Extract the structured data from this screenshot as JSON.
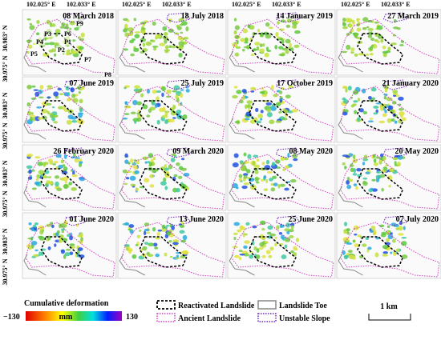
{
  "x_labels": [
    "102.025° E",
    "102.033° E"
  ],
  "y_labels": [
    "30.983° N",
    "30.975° N"
  ],
  "panels": [
    "08 March 2018",
    "18 July 2018",
    "14 January 2019",
    "27 March 2019",
    "07 June 2019",
    "25 July 2019",
    "17 October 2019",
    "21 January 2020",
    "26 February 2020",
    "09 March 2020",
    "08 May 2020",
    "20 May 2020",
    "01 June 2020",
    "13 June 2020",
    "25 June 2020",
    "07 July 2020"
  ],
  "point_labels": [
    "P1",
    "P2",
    "P3",
    "P4",
    "P5",
    "P6",
    "P7",
    "P8",
    "P9"
  ],
  "colorbar": {
    "title": "Cumulative deformation",
    "min_label": "−130",
    "unit": "mm",
    "max_label": "130"
  },
  "legend": [
    "Reactivated Landslide",
    "Ancient Landslide",
    "Landslide Toe",
    "Unstable Slope"
  ],
  "scale_bar": "1 km"
}
